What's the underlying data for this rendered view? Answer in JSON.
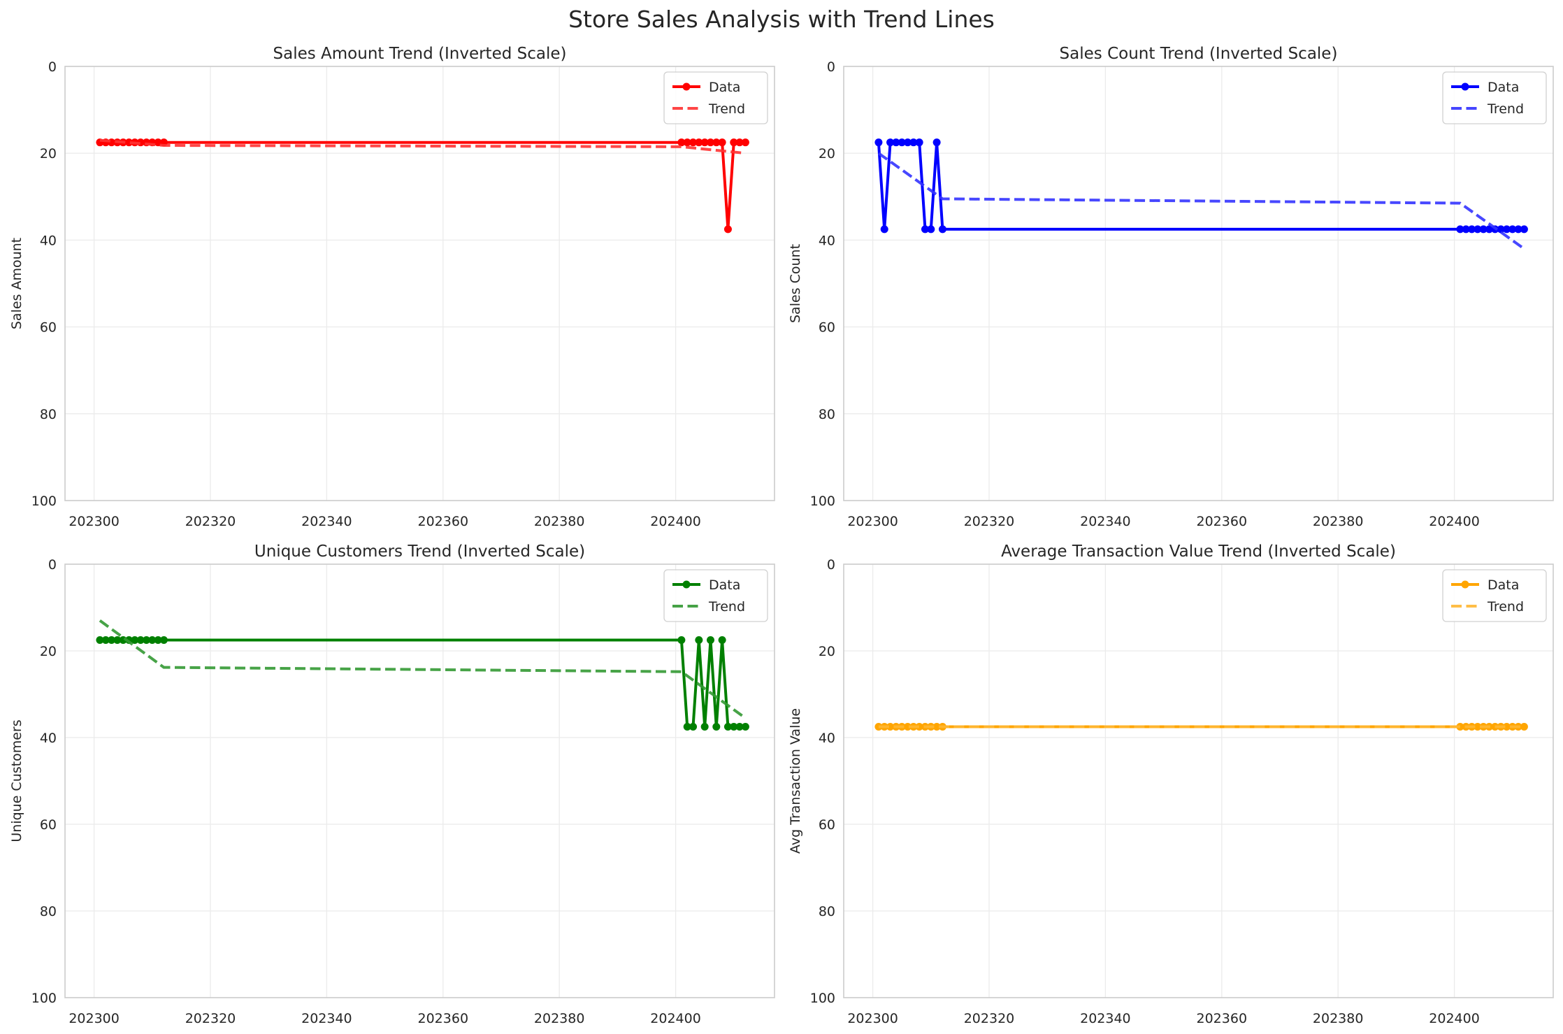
{
  "figure": {
    "suptitle": "Store Sales Analysis with Trend Lines"
  },
  "chart_data": [
    {
      "type": "line",
      "title": "Sales Amount Trend (Inverted Scale)",
      "xlabel": "",
      "ylabel": "Sales Amount",
      "xlim": [
        202295,
        202417
      ],
      "ylim": [
        100,
        0
      ],
      "y_inverted": true,
      "grid": true,
      "legend": "top-right",
      "xticks": [
        202300,
        202320,
        202340,
        202360,
        202380,
        202400
      ],
      "yticks": [
        0,
        20,
        40,
        60,
        80,
        100
      ],
      "series": [
        {
          "name": "Data",
          "style": "solid-markers",
          "color": "#ff0000",
          "x": [
            202301,
            202302,
            202303,
            202304,
            202305,
            202306,
            202307,
            202308,
            202309,
            202310,
            202311,
            202312,
            202401,
            202402,
            202403,
            202404,
            202405,
            202406,
            202407,
            202408,
            202409,
            202410,
            202411,
            202412
          ],
          "y": [
            17.5,
            17.5,
            17.5,
            17.5,
            17.5,
            17.5,
            17.5,
            17.5,
            17.5,
            17.5,
            17.5,
            17.5,
            17.5,
            17.5,
            17.5,
            17.5,
            17.5,
            17.5,
            17.5,
            17.5,
            37.5,
            17.5,
            17.5,
            17.5
          ]
        },
        {
          "name": "Trend",
          "style": "dashed",
          "color": "#ff3333",
          "x": [
            202301,
            202312,
            202401,
            202412
          ],
          "y": [
            17.0,
            18.2,
            18.5,
            20.0
          ]
        }
      ]
    },
    {
      "type": "line",
      "title": "Sales Count Trend (Inverted Scale)",
      "xlabel": "",
      "ylabel": "Sales Count",
      "xlim": [
        202295,
        202417
      ],
      "ylim": [
        100,
        0
      ],
      "y_inverted": true,
      "grid": true,
      "legend": "top-right",
      "xticks": [
        202300,
        202320,
        202340,
        202360,
        202380,
        202400
      ],
      "yticks": [
        0,
        20,
        40,
        60,
        80,
        100
      ],
      "series": [
        {
          "name": "Data",
          "style": "solid-markers",
          "color": "#0000ff",
          "x": [
            202301,
            202302,
            202303,
            202304,
            202305,
            202306,
            202307,
            202308,
            202309,
            202310,
            202311,
            202312,
            202401,
            202402,
            202403,
            202404,
            202405,
            202406,
            202407,
            202408,
            202409,
            202410,
            202411,
            202412
          ],
          "y": [
            17.5,
            37.5,
            17.5,
            17.5,
            17.5,
            17.5,
            17.5,
            17.5,
            37.5,
            37.5,
            17.5,
            37.5,
            37.5,
            37.5,
            37.5,
            37.5,
            37.5,
            37.5,
            37.5,
            37.5,
            37.5,
            37.5,
            37.5,
            37.5
          ]
        },
        {
          "name": "Trend",
          "style": "dashed",
          "color": "#3333ff",
          "x": [
            202301,
            202312,
            202401,
            202412
          ],
          "y": [
            20.0,
            30.5,
            31.5,
            42.0
          ]
        }
      ]
    },
    {
      "type": "line",
      "title": "Unique Customers Trend (Inverted Scale)",
      "xlabel": "",
      "ylabel": "Unique Customers",
      "xlim": [
        202295,
        202417
      ],
      "ylim": [
        100,
        0
      ],
      "y_inverted": true,
      "grid": true,
      "legend": "top-right",
      "xticks": [
        202300,
        202320,
        202340,
        202360,
        202380,
        202400
      ],
      "yticks": [
        0,
        20,
        40,
        60,
        80,
        100
      ],
      "series": [
        {
          "name": "Data",
          "style": "solid-markers",
          "color": "#008000",
          "x": [
            202301,
            202302,
            202303,
            202304,
            202305,
            202306,
            202307,
            202308,
            202309,
            202310,
            202311,
            202312,
            202401,
            202402,
            202403,
            202404,
            202405,
            202406,
            202407,
            202408,
            202409,
            202410,
            202411,
            202412
          ],
          "y": [
            17.5,
            17.5,
            17.5,
            17.5,
            17.5,
            17.5,
            17.5,
            17.5,
            17.5,
            17.5,
            17.5,
            17.5,
            17.5,
            37.5,
            37.5,
            17.5,
            37.5,
            17.5,
            37.5,
            17.5,
            37.5,
            37.5,
            37.5,
            37.5
          ]
        },
        {
          "name": "Trend",
          "style": "dashed",
          "color": "#339933",
          "x": [
            202301,
            202312,
            202401,
            202412
          ],
          "y": [
            13.0,
            23.8,
            24.8,
            35.5
          ]
        }
      ]
    },
    {
      "type": "line",
      "title": "Average Transaction Value Trend (Inverted Scale)",
      "xlabel": "",
      "ylabel": "Avg Transaction Value",
      "xlim": [
        202295,
        202417
      ],
      "ylim": [
        100,
        0
      ],
      "y_inverted": true,
      "grid": true,
      "legend": "top-right",
      "xticks": [
        202300,
        202320,
        202340,
        202360,
        202380,
        202400
      ],
      "yticks": [
        0,
        20,
        40,
        60,
        80,
        100
      ],
      "series": [
        {
          "name": "Data",
          "style": "solid-markers",
          "color": "#ffa500",
          "x": [
            202301,
            202302,
            202303,
            202304,
            202305,
            202306,
            202307,
            202308,
            202309,
            202310,
            202311,
            202312,
            202401,
            202402,
            202403,
            202404,
            202405,
            202406,
            202407,
            202408,
            202409,
            202410,
            202411,
            202412
          ],
          "y": [
            37.5,
            37.5,
            37.5,
            37.5,
            37.5,
            37.5,
            37.5,
            37.5,
            37.5,
            37.5,
            37.5,
            37.5,
            37.5,
            37.5,
            37.5,
            37.5,
            37.5,
            37.5,
            37.5,
            37.5,
            37.5,
            37.5,
            37.5,
            37.5
          ]
        },
        {
          "name": "Trend",
          "style": "dashed",
          "color": "#ffb733",
          "x": [
            202301,
            202312,
            202401,
            202412
          ],
          "y": [
            37.5,
            37.5,
            37.5,
            37.5
          ]
        }
      ]
    }
  ]
}
